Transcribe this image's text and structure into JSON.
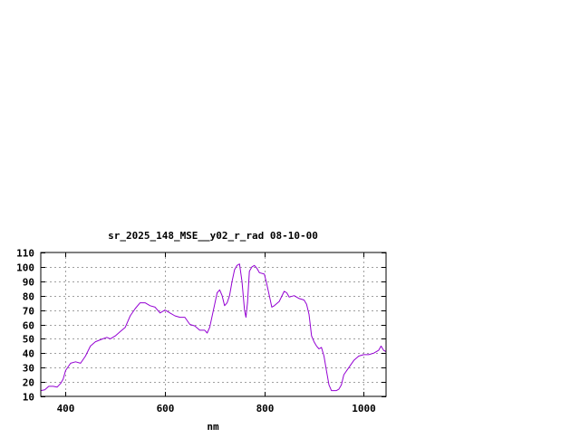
{
  "chart_data": {
    "type": "line",
    "title": "sr_2025_148_MSE__y02_r_rad 08-10-00",
    "xlabel": "nm",
    "ylabel": "",
    "xlim": [
      350,
      1045
    ],
    "ylim": [
      10,
      110
    ],
    "x_ticks": [
      400,
      600,
      800,
      1000
    ],
    "y_ticks": [
      10,
      20,
      30,
      40,
      50,
      60,
      70,
      80,
      90,
      100,
      110
    ],
    "grid": true,
    "legend": "none",
    "colors": {
      "line": "#9400d3",
      "grid": "#a0a0a0",
      "axis": "#000000"
    },
    "series": [
      {
        "points": [
          [
            350,
            14
          ],
          [
            358,
            14.5
          ],
          [
            366,
            17
          ],
          [
            375,
            17
          ],
          [
            383,
            16.5
          ],
          [
            390,
            19
          ],
          [
            395,
            22
          ],
          [
            400,
            28
          ],
          [
            410,
            33
          ],
          [
            420,
            34
          ],
          [
            430,
            33
          ],
          [
            440,
            38
          ],
          [
            450,
            45
          ],
          [
            460,
            48
          ],
          [
            475,
            50
          ],
          [
            483,
            51
          ],
          [
            490,
            50
          ],
          [
            500,
            52
          ],
          [
            510,
            55
          ],
          [
            520,
            58
          ],
          [
            530,
            66
          ],
          [
            540,
            71
          ],
          [
            550,
            75
          ],
          [
            560,
            75
          ],
          [
            570,
            73
          ],
          [
            580,
            72
          ],
          [
            590,
            68
          ],
          [
            600,
            70
          ],
          [
            610,
            68
          ],
          [
            620,
            66
          ],
          [
            630,
            65
          ],
          [
            640,
            65
          ],
          [
            650,
            60
          ],
          [
            660,
            59
          ],
          [
            670,
            56
          ],
          [
            680,
            56
          ],
          [
            685,
            54
          ],
          [
            690,
            58
          ],
          [
            700,
            74
          ],
          [
            705,
            82
          ],
          [
            710,
            84
          ],
          [
            715,
            80
          ],
          [
            720,
            73
          ],
          [
            725,
            75
          ],
          [
            730,
            80
          ],
          [
            735,
            90
          ],
          [
            740,
            98
          ],
          [
            745,
            101
          ],
          [
            750,
            102
          ],
          [
            755,
            90
          ],
          [
            760,
            70
          ],
          [
            763,
            65
          ],
          [
            766,
            75
          ],
          [
            770,
            97
          ],
          [
            775,
            100
          ],
          [
            780,
            101
          ],
          [
            785,
            99
          ],
          [
            790,
            96
          ],
          [
            800,
            95
          ],
          [
            805,
            88
          ],
          [
            810,
            80
          ],
          [
            815,
            72
          ],
          [
            820,
            73
          ],
          [
            830,
            76
          ],
          [
            840,
            83
          ],
          [
            845,
            82
          ],
          [
            850,
            79
          ],
          [
            860,
            80
          ],
          [
            870,
            78
          ],
          [
            880,
            77
          ],
          [
            885,
            74
          ],
          [
            890,
            67
          ],
          [
            895,
            52
          ],
          [
            900,
            48
          ],
          [
            905,
            45
          ],
          [
            910,
            43
          ],
          [
            915,
            44
          ],
          [
            920,
            38
          ],
          [
            925,
            28
          ],
          [
            930,
            18
          ],
          [
            935,
            14
          ],
          [
            945,
            14
          ],
          [
            950,
            15
          ],
          [
            955,
            18
          ],
          [
            960,
            25
          ],
          [
            970,
            30
          ],
          [
            980,
            35
          ],
          [
            990,
            38
          ],
          [
            1000,
            39
          ],
          [
            1010,
            39
          ],
          [
            1020,
            40
          ],
          [
            1030,
            42
          ],
          [
            1035,
            45
          ],
          [
            1040,
            42
          ],
          [
            1045,
            41
          ]
        ]
      }
    ]
  }
}
